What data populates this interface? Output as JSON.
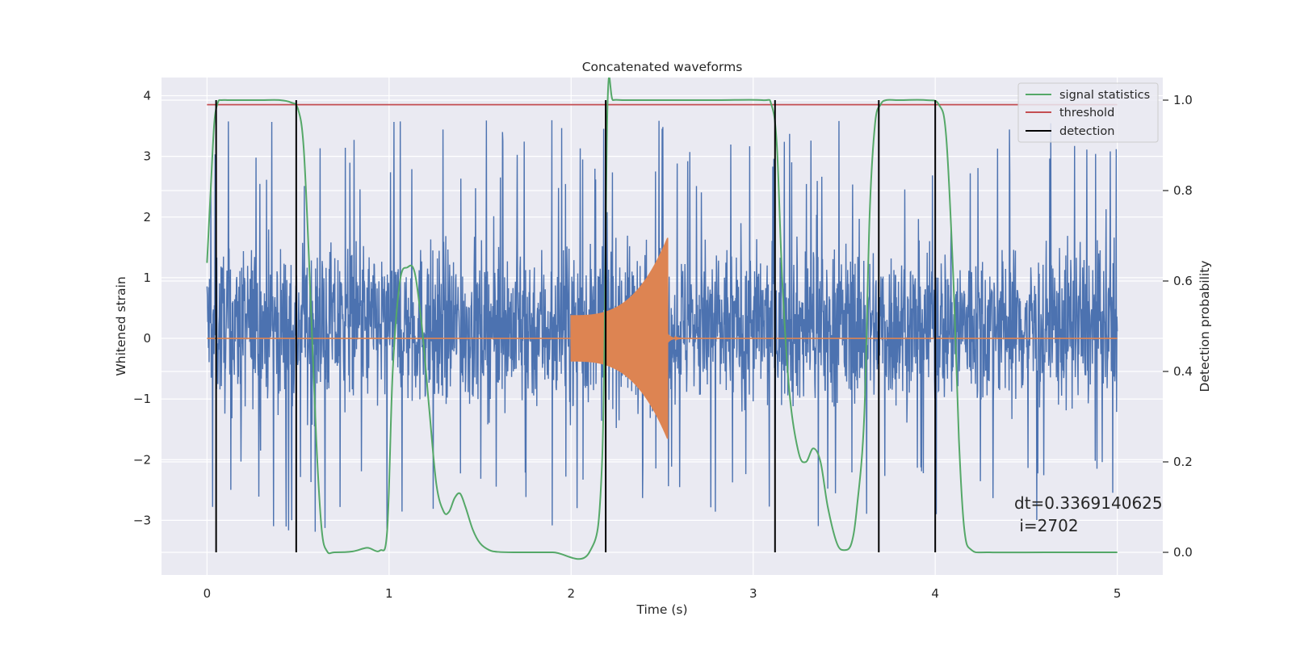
{
  "chart_data": {
    "type": "line",
    "title": "Concatenated waveforms",
    "xlabel": "Time (s)",
    "ylabel": "Whitened strain",
    "y2label": "Detection probability",
    "xlim": [
      -0.25,
      5.25
    ],
    "ylim": [
      -3.9,
      4.3
    ],
    "y2lim": [
      -0.05,
      1.05
    ],
    "xticks": [
      0,
      1,
      2,
      3,
      4,
      5
    ],
    "xtick_labels": [
      "0",
      "1",
      "2",
      "3",
      "4",
      "5"
    ],
    "yticks": [
      -3,
      -2,
      -1,
      0,
      1,
      2,
      3,
      4
    ],
    "ytick_labels": [
      "−3",
      "−2",
      "−1",
      "0",
      "1",
      "2",
      "3",
      "4"
    ],
    "y2ticks": [
      0.0,
      0.2,
      0.4,
      0.6,
      0.8,
      1.0
    ],
    "y2tick_labels": [
      "0.0",
      "0.2",
      "0.4",
      "0.6",
      "0.8",
      "1.0"
    ],
    "grid": true,
    "legend_position": "top-right",
    "legend": [
      "signal statistics",
      "threshold",
      "detection"
    ],
    "colors": {
      "strain": "#4c72b0",
      "injected": "#dd8452",
      "signal_statistics": "#55a868",
      "threshold": "#c44e52",
      "detection": "#000000",
      "background": "#eaeaf2",
      "grid": "#ffffff"
    },
    "strain": {
      "x_range": [
        0,
        5
      ],
      "noise_typical_low": -2.0,
      "noise_typical_high": 2.4,
      "noise_max": 3.9,
      "noise_min": -3.55
    },
    "injected_signal": {
      "start": 2.0,
      "end": 2.53,
      "start_amplitude": 0.45,
      "peak_amplitude": 1.95
    },
    "series": [
      {
        "name": "signal statistics",
        "axis": "y2",
        "x": [
          0.0,
          0.02,
          0.04,
          0.06,
          0.08,
          0.12,
          0.2,
          0.3,
          0.4,
          0.46,
          0.5,
          0.53,
          0.56,
          0.6,
          0.63,
          0.66,
          0.7,
          0.8,
          0.88,
          0.95,
          0.99,
          1.02,
          1.06,
          1.1,
          1.14,
          1.18,
          1.22,
          1.26,
          1.3,
          1.33,
          1.36,
          1.39,
          1.42,
          1.46,
          1.5,
          1.55,
          1.6,
          1.7,
          1.9,
          2.1,
          2.17,
          2.2,
          2.23,
          2.3,
          2.5,
          2.8,
          3.05,
          3.1,
          3.13,
          3.16,
          3.2,
          3.25,
          3.29,
          3.33,
          3.37,
          3.41,
          3.46,
          3.5,
          3.54,
          3.57,
          3.61,
          3.64,
          3.67,
          3.7,
          3.73,
          3.8,
          3.95,
          4.02,
          4.06,
          4.1,
          4.13,
          4.16,
          4.2,
          4.3,
          4.6,
          5.0
        ],
        "values": [
          0.64,
          0.8,
          0.95,
          0.995,
          1.0,
          1.0,
          1.0,
          1.0,
          1.0,
          0.995,
          0.98,
          0.9,
          0.65,
          0.25,
          0.05,
          0.002,
          0.0,
          0.002,
          0.01,
          0.004,
          0.05,
          0.4,
          0.6,
          0.63,
          0.62,
          0.5,
          0.32,
          0.15,
          0.09,
          0.09,
          0.12,
          0.13,
          0.1,
          0.05,
          0.02,
          0.005,
          0.001,
          0.0,
          0.0,
          0.0,
          0.2,
          0.99,
          1.0,
          1.0,
          1.0,
          1.0,
          1.0,
          0.99,
          0.9,
          0.6,
          0.35,
          0.22,
          0.2,
          0.23,
          0.2,
          0.1,
          0.02,
          0.005,
          0.02,
          0.1,
          0.3,
          0.75,
          0.95,
          0.99,
          1.0,
          1.0,
          1.0,
          0.99,
          0.92,
          0.6,
          0.25,
          0.05,
          0.005,
          0.0,
          0.0,
          0.0
        ]
      },
      {
        "name": "threshold",
        "axis": "y2",
        "x": [
          0,
          5
        ],
        "values": [
          0.99,
          0.99
        ]
      }
    ],
    "detection_times": [
      0.05,
      0.49,
      2.19,
      3.12,
      3.69,
      4.0
    ],
    "detection_range": [
      0.0,
      1.0
    ],
    "annotation_lines": [
      "dt=0.3369140625",
      " i=2702"
    ]
  }
}
